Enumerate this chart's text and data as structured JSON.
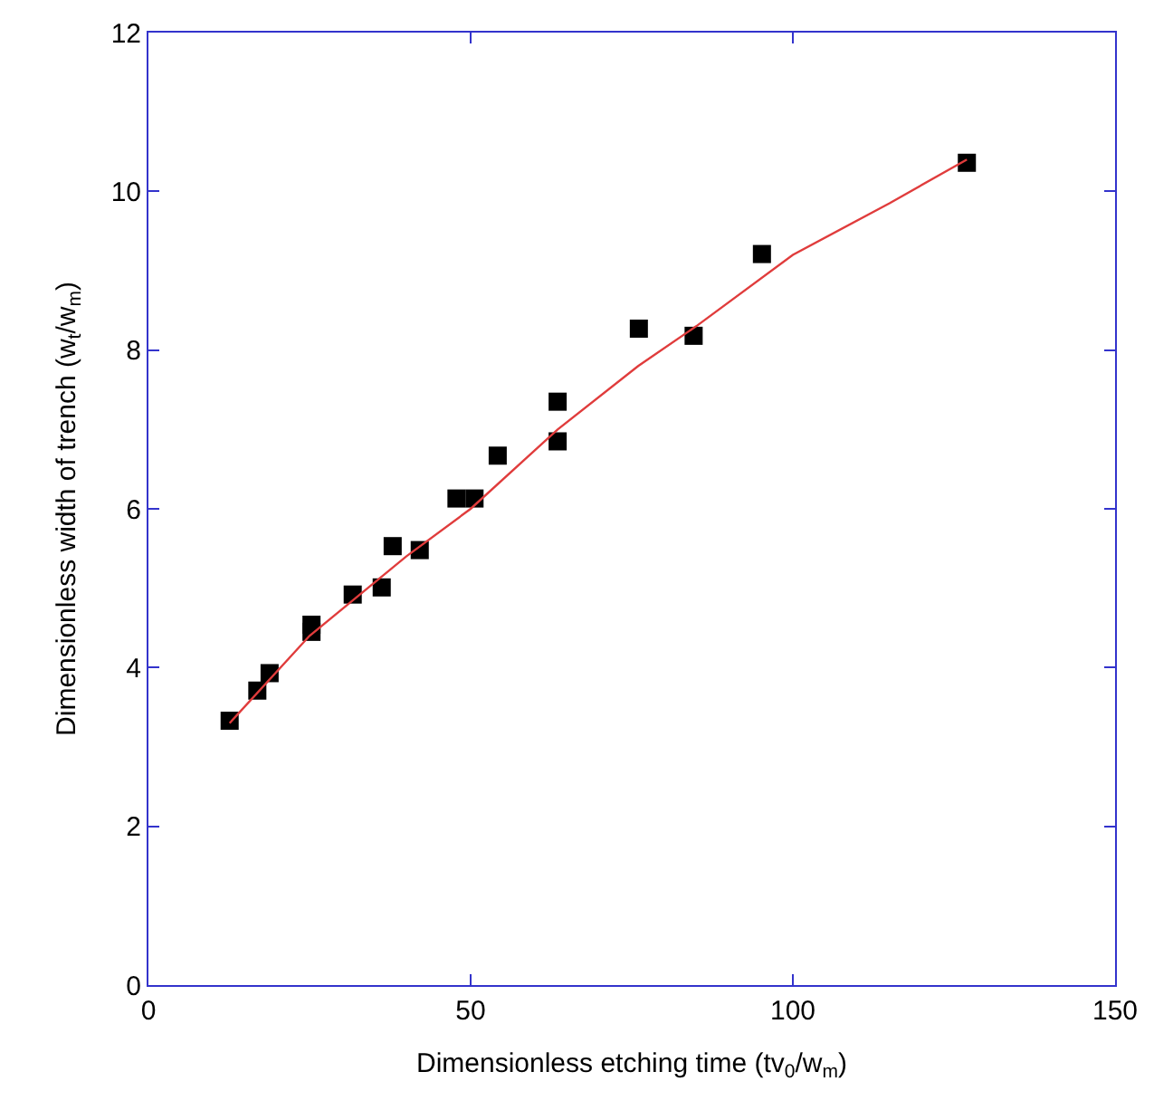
{
  "chart_data": {
    "type": "scatter",
    "xlabel": "Dimensionless etching time (tv$_{0}$/w$_{m}$)",
    "ylabel": "Dimensionless width of trench (w$_{t}$/w$_{m}$)",
    "xlim": [
      0,
      150
    ],
    "xticks": [
      0,
      50,
      100,
      150
    ],
    "ylim": [
      0,
      12
    ],
    "yticks": [
      0,
      2,
      4,
      6,
      8,
      10,
      12
    ],
    "series": [
      {
        "marker": "square",
        "color": "#000000",
        "x": [
          12.6,
          16.9,
          18.8,
          25.3,
          25.3,
          31.7,
          36.2,
          37.9,
          42.1,
          47.8,
          50.6,
          54.2,
          63.5,
          63.5,
          76.1,
          84.6,
          95.2,
          127.0
        ],
        "values": [
          3.33,
          3.71,
          3.93,
          4.54,
          4.45,
          4.92,
          5.01,
          5.53,
          5.48,
          6.13,
          6.13,
          6.67,
          7.35,
          6.85,
          8.27,
          8.18,
          9.21,
          10.36
        ]
      },
      {
        "type": "line",
        "marker": "none",
        "line_style": "solid",
        "color": "#e03c3c",
        "x": [
          12.6,
          25,
          40,
          50,
          63.5,
          76,
          85,
          100,
          115,
          127
        ],
        "values": [
          3.3,
          4.4,
          5.4,
          6.0,
          7.0,
          7.8,
          8.3,
          9.2,
          9.85,
          10.4
        ]
      }
    ]
  }
}
